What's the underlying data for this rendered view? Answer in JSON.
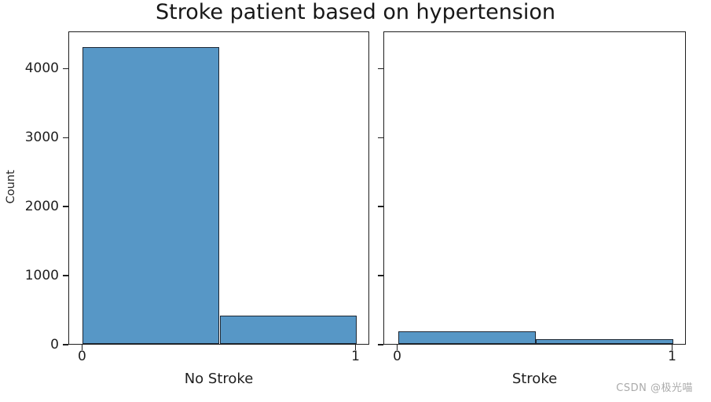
{
  "chart_data": {
    "type": "bar",
    "title": "Stroke patient based on hypertension",
    "ylabel": "Count",
    "ylim": [
      0,
      4540
    ],
    "yticks": [
      0,
      1000,
      2000,
      3000,
      4000
    ],
    "grid": false,
    "legend": null,
    "bar_fill_color": "#5797c6",
    "bar_edge_color": "#1d2733",
    "axis_color": "#1f1f1f",
    "subplots": [
      {
        "xlabel": "No Stroke",
        "categories": [
          "0",
          "1"
        ],
        "values": [
          4300,
          410
        ]
      },
      {
        "xlabel": "Stroke",
        "categories": [
          "0",
          "1"
        ],
        "values": [
          180,
          70
        ]
      }
    ]
  },
  "watermark": {
    "text": "CSDN @极光喵"
  }
}
